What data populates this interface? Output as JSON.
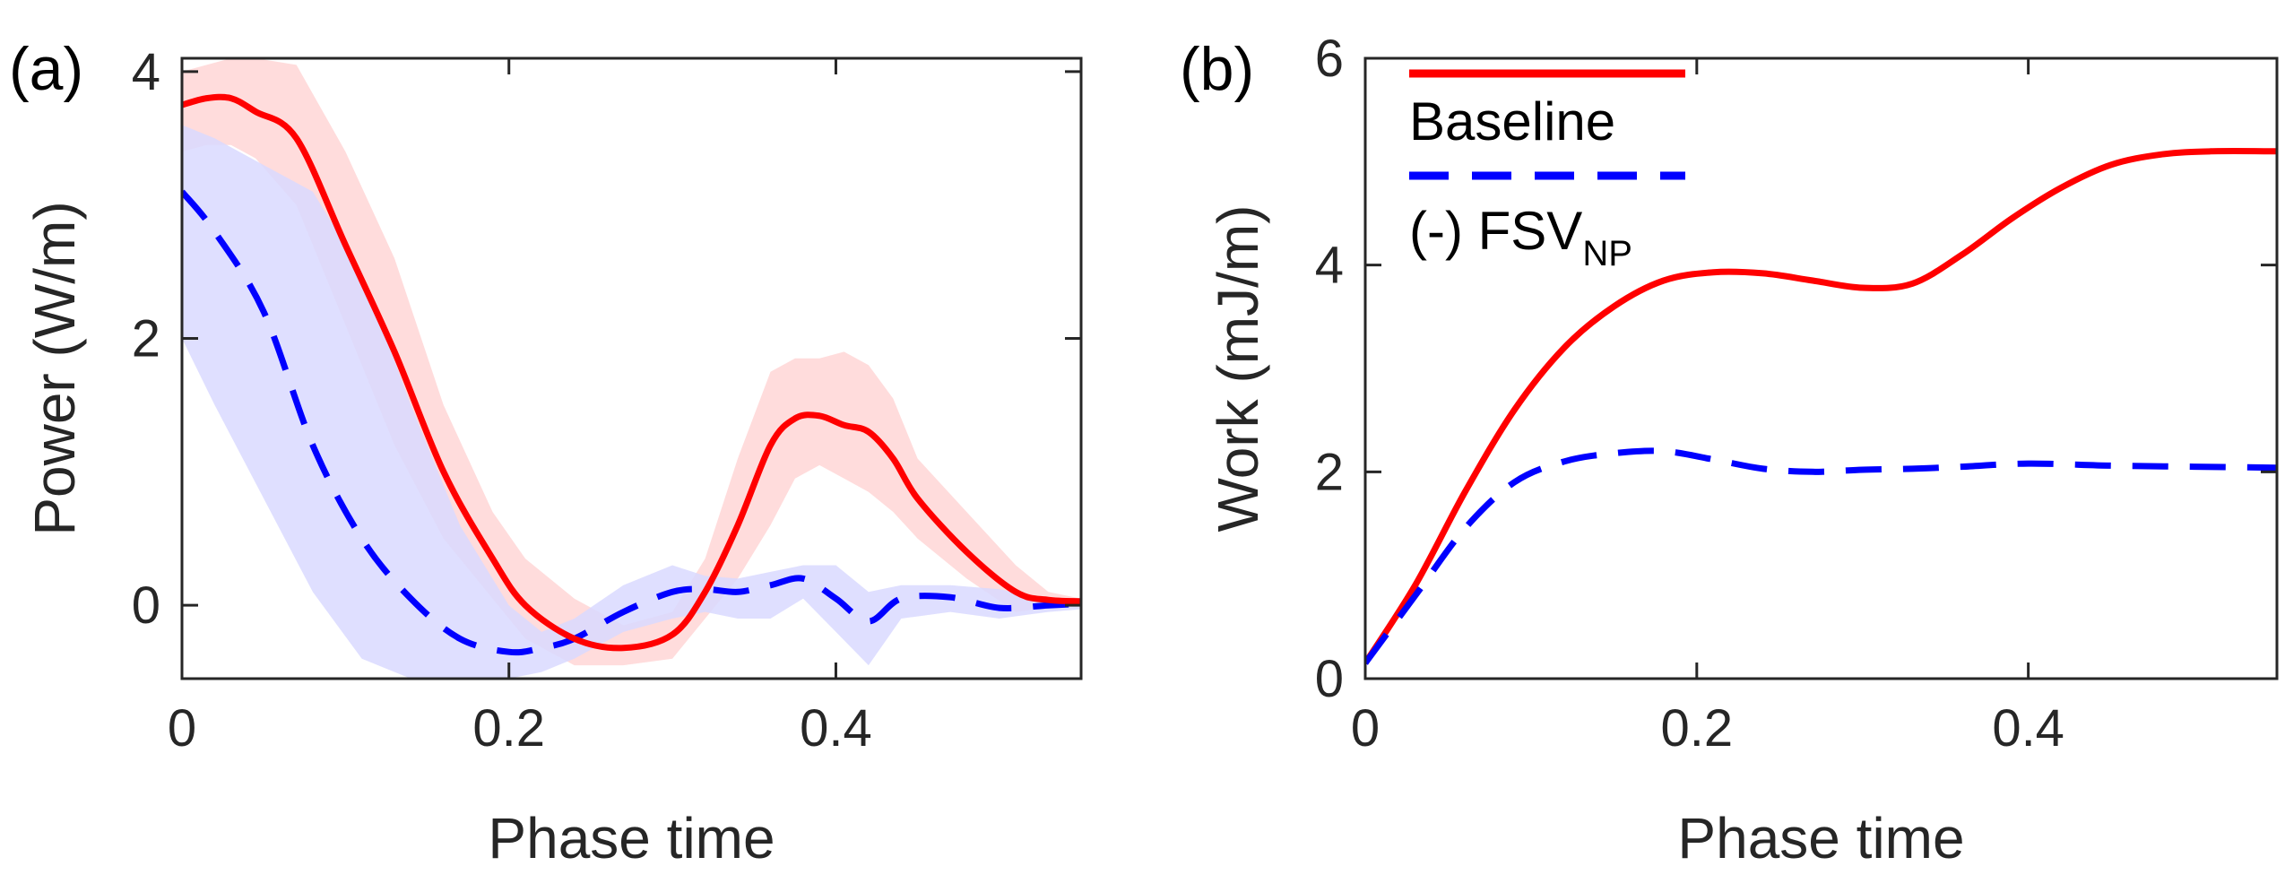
{
  "colors": {
    "baseline": "#ff0000",
    "fsv": "#0000ff",
    "baseline_band": "#ffd6d6",
    "fsv_band": "#d9d9ff",
    "axis": "#262626"
  },
  "legend": {
    "baseline_label": "Baseline",
    "fsv_prefix": "(-) FSV",
    "fsv_subscript": "NP"
  },
  "chart_data": [
    {
      "panel": "(a)",
      "type": "line",
      "xlabel": "Phase time",
      "ylabel": "Power (W/m)",
      "xlim": [
        0,
        0.55
      ],
      "ylim": [
        -0.55,
        4.1
      ],
      "xticks": [
        0,
        0.2,
        0.4
      ],
      "xtick_labels": [
        "0",
        "0.2",
        "0.4"
      ],
      "yticks": [
        0,
        2,
        4
      ],
      "ytick_labels": [
        "0",
        "2",
        "4"
      ],
      "grid": false,
      "series": [
        {
          "name": "Baseline",
          "style": "solid",
          "x": [
            0,
            0.015,
            0.03,
            0.045,
            0.07,
            0.1,
            0.13,
            0.16,
            0.19,
            0.21,
            0.24,
            0.27,
            0.3,
            0.32,
            0.34,
            0.36,
            0.375,
            0.39,
            0.405,
            0.42,
            0.435,
            0.45,
            0.48,
            0.51,
            0.53,
            0.55
          ],
          "y": [
            3.75,
            3.8,
            3.8,
            3.7,
            3.5,
            2.7,
            1.9,
            1.0,
            0.35,
            0.0,
            -0.25,
            -0.32,
            -0.22,
            0.1,
            0.6,
            1.2,
            1.4,
            1.42,
            1.35,
            1.3,
            1.1,
            0.8,
            0.4,
            0.1,
            0.04,
            0.03
          ],
          "band_upper": [
            4.0,
            4.05,
            4.1,
            4.1,
            4.05,
            3.4,
            2.6,
            1.5,
            0.7,
            0.35,
            0.05,
            -0.15,
            -0.05,
            0.35,
            1.1,
            1.75,
            1.85,
            1.85,
            1.9,
            1.8,
            1.55,
            1.1,
            0.7,
            0.3,
            0.1,
            0.05
          ],
          "band_lower": [
            3.4,
            3.45,
            3.45,
            3.35,
            3.0,
            2.1,
            1.2,
            0.5,
            0.05,
            -0.25,
            -0.45,
            -0.45,
            -0.4,
            -0.1,
            0.2,
            0.6,
            0.95,
            1.05,
            0.95,
            0.85,
            0.7,
            0.5,
            0.2,
            -0.05,
            -0.02,
            0.0
          ]
        },
        {
          "name": "(-) FSV_NP",
          "style": "dashed",
          "x": [
            0,
            0.02,
            0.05,
            0.08,
            0.11,
            0.14,
            0.17,
            0.2,
            0.22,
            0.24,
            0.27,
            0.3,
            0.32,
            0.34,
            0.36,
            0.38,
            0.4,
            0.42,
            0.44,
            0.47,
            0.5,
            0.53,
            0.55
          ],
          "y": [
            3.1,
            2.8,
            2.2,
            1.2,
            0.5,
            0.05,
            -0.25,
            -0.35,
            -0.32,
            -0.25,
            -0.05,
            0.1,
            0.12,
            0.1,
            0.15,
            0.2,
            0.05,
            -0.12,
            0.05,
            0.06,
            -0.02,
            0.0,
            0.01
          ],
          "band_upper": [
            3.6,
            3.5,
            3.3,
            3.1,
            2.5,
            1.5,
            0.6,
            0.0,
            -0.2,
            -0.1,
            0.15,
            0.3,
            0.22,
            0.2,
            0.25,
            0.3,
            0.3,
            0.1,
            0.15,
            0.15,
            0.12,
            0.05,
            0.05
          ],
          "band_lower": [
            2.0,
            1.5,
            0.8,
            0.1,
            -0.4,
            -0.55,
            -0.55,
            -0.55,
            -0.5,
            -0.4,
            -0.2,
            -0.1,
            -0.05,
            -0.1,
            -0.1,
            0.05,
            -0.2,
            -0.45,
            -0.1,
            -0.05,
            -0.1,
            -0.05,
            -0.03
          ]
        }
      ]
    },
    {
      "panel": "(b)",
      "type": "line",
      "xlabel": "Phase time",
      "ylabel": "Work (mJ/m)",
      "xlim": [
        0,
        0.55
      ],
      "ylim": [
        0,
        6
      ],
      "xticks": [
        0,
        0.2,
        0.4
      ],
      "xtick_labels": [
        "0",
        "0.2",
        "0.4"
      ],
      "yticks": [
        0,
        2,
        4,
        6
      ],
      "ytick_labels": [
        "0",
        "2",
        "4",
        "6"
      ],
      "grid": false,
      "legend_position": "top-left",
      "series": [
        {
          "name": "Baseline",
          "style": "solid",
          "x": [
            0,
            0.03,
            0.06,
            0.09,
            0.12,
            0.15,
            0.18,
            0.21,
            0.24,
            0.27,
            0.3,
            0.33,
            0.36,
            0.39,
            0.42,
            0.45,
            0.48,
            0.51,
            0.55
          ],
          "y": [
            0.15,
            0.9,
            1.8,
            2.6,
            3.2,
            3.6,
            3.85,
            3.93,
            3.92,
            3.85,
            3.78,
            3.82,
            4.1,
            4.45,
            4.75,
            4.97,
            5.07,
            5.1,
            5.1
          ]
        },
        {
          "name": "(-) FSV_NP",
          "style": "dashed",
          "x": [
            0,
            0.03,
            0.06,
            0.09,
            0.12,
            0.15,
            0.18,
            0.21,
            0.24,
            0.27,
            0.3,
            0.33,
            0.36,
            0.4,
            0.45,
            0.5,
            0.55
          ],
          "y": [
            0.15,
            0.8,
            1.45,
            1.9,
            2.1,
            2.18,
            2.2,
            2.12,
            2.03,
            2.0,
            2.02,
            2.03,
            2.05,
            2.08,
            2.06,
            2.05,
            2.04
          ]
        }
      ]
    }
  ]
}
